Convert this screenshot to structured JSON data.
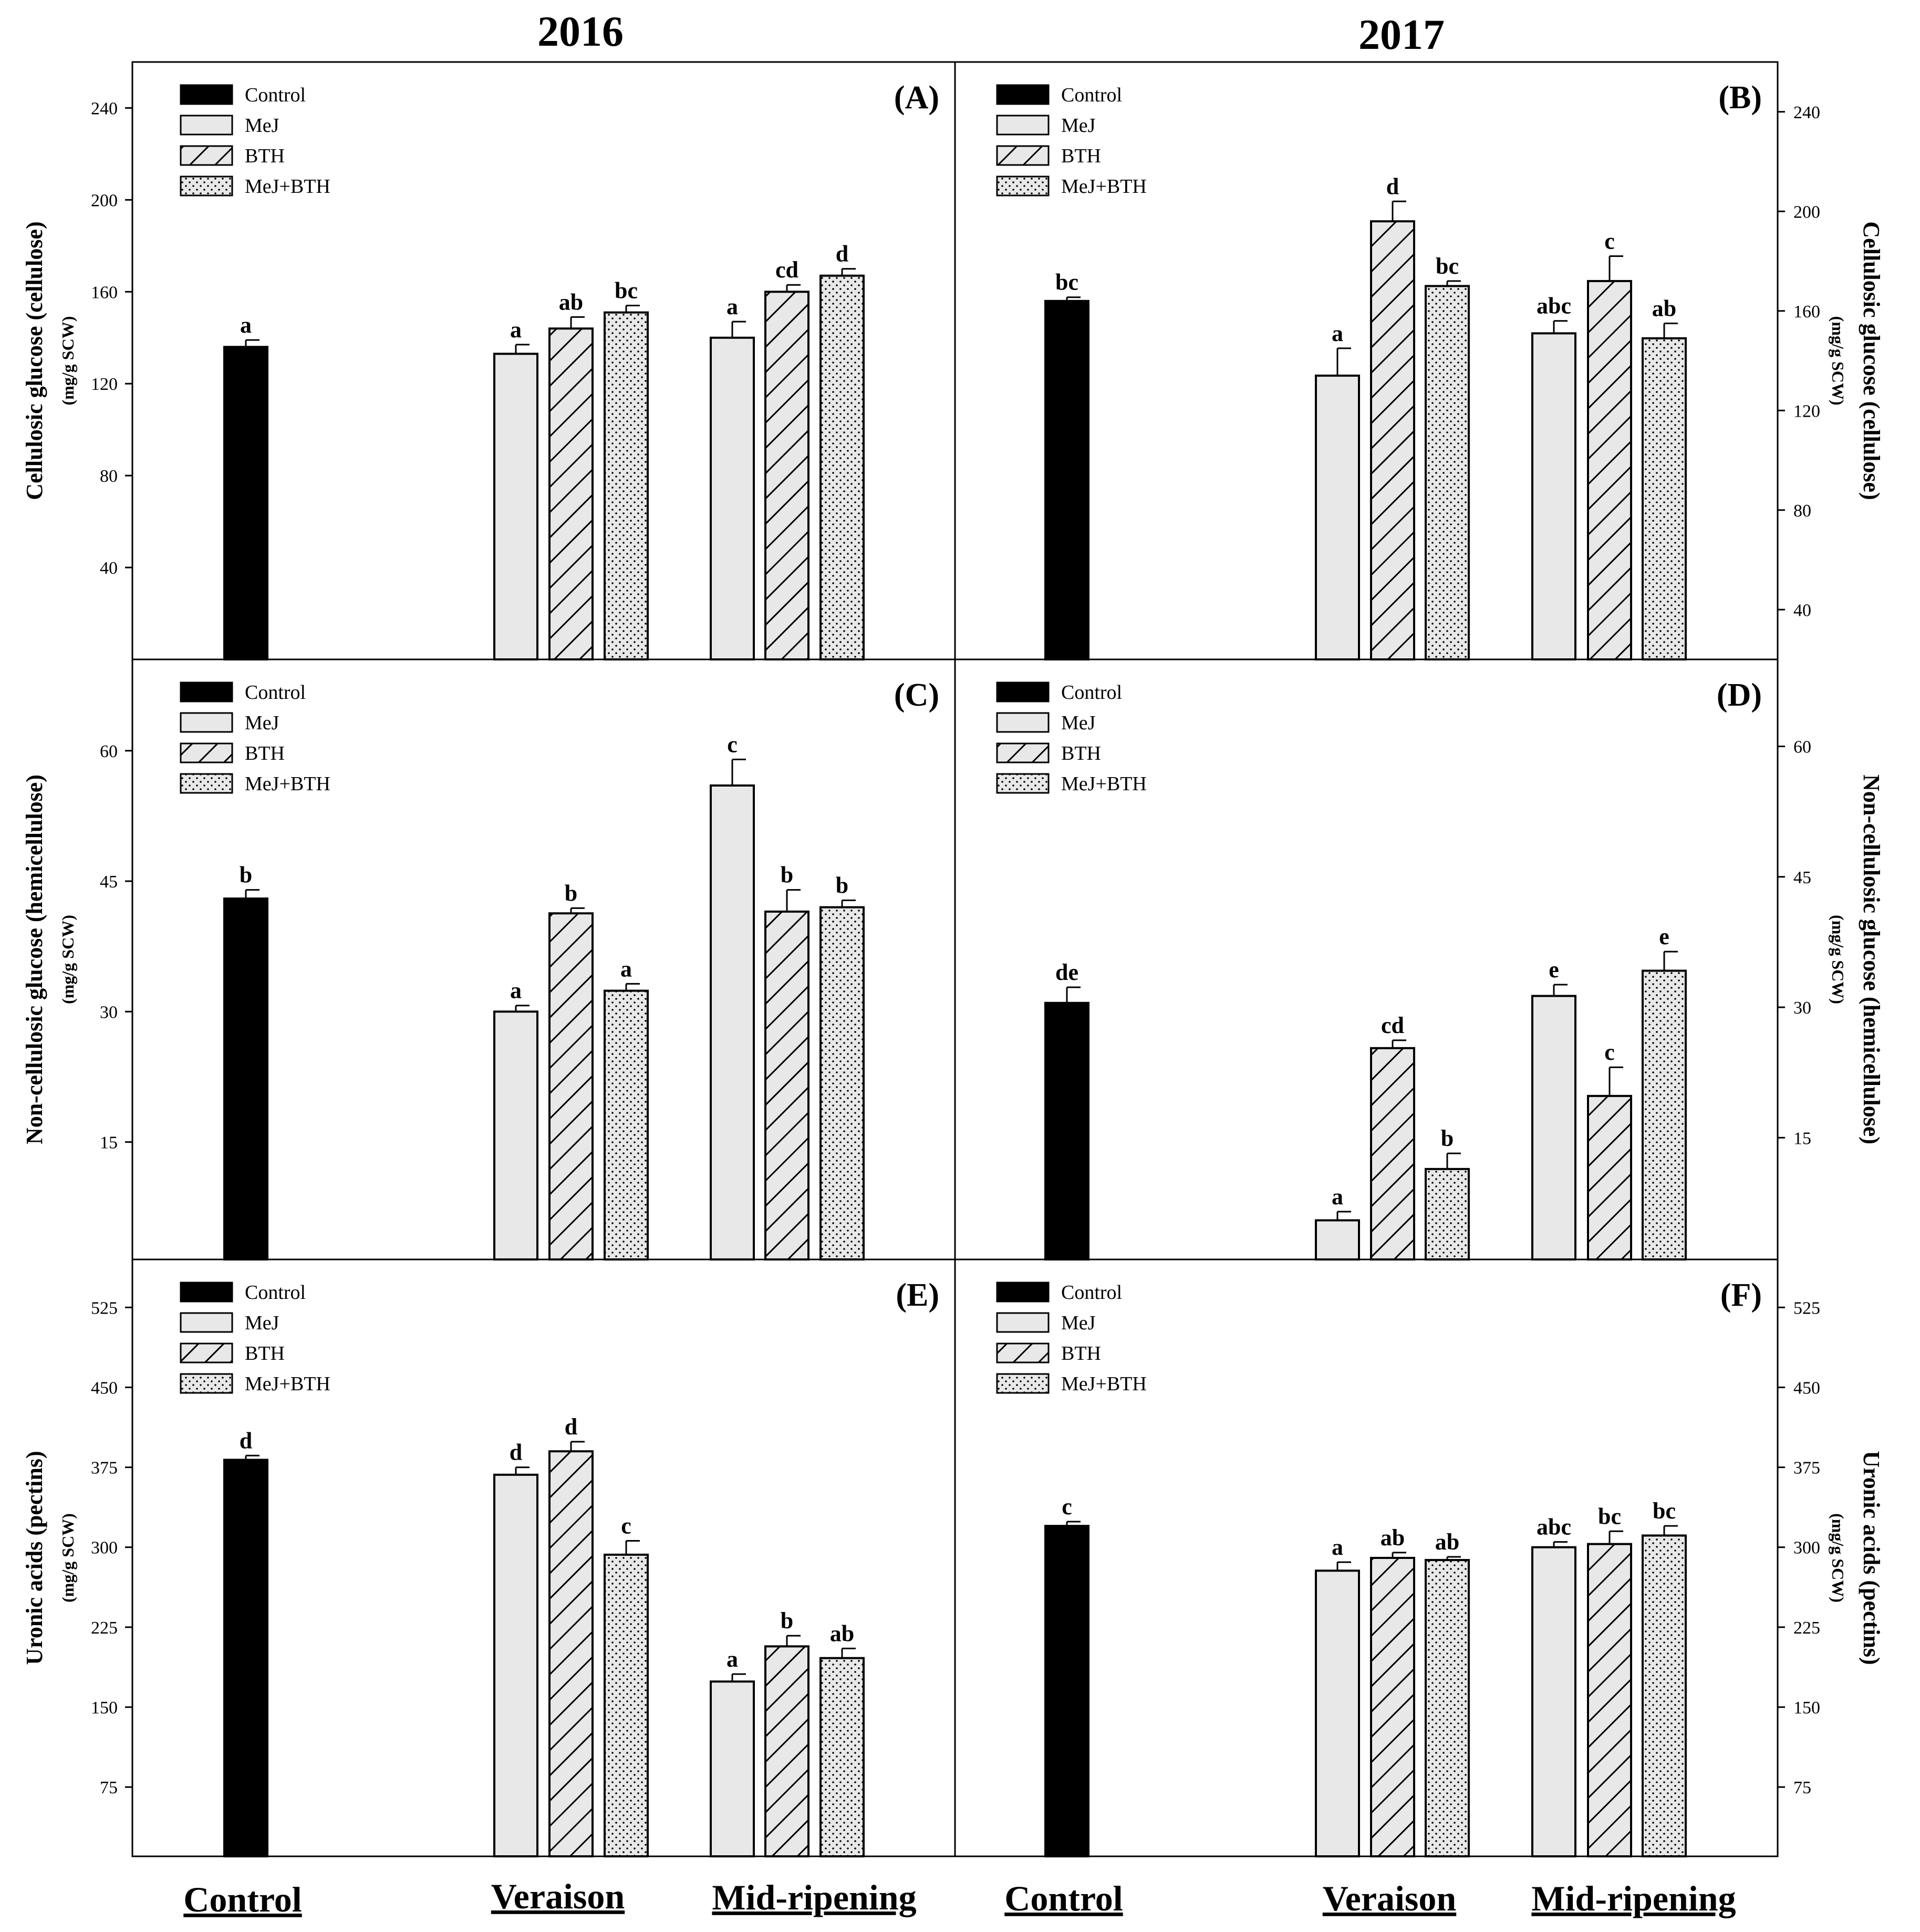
{
  "figure": {
    "year_labels": [
      "2016",
      "2017"
    ],
    "x_groups": [
      "Control",
      "Veraison",
      "Mid-ripening"
    ],
    "legend": [
      "Control",
      "MeJ",
      "BTH",
      "MeJ+BTH"
    ]
  },
  "chart_data": [
    {
      "type": "bar",
      "panel": "(A)",
      "year": "2016",
      "ylabel": "Cellulosic glucose (cellulose)",
      "yunit": "(mg/g SCW)",
      "ylim": [
        0,
        260
      ],
      "yticks": [
        40,
        80,
        120,
        160,
        200,
        240
      ],
      "yaxis": "left",
      "series": [
        {
          "group": "Control",
          "treatment": "Control",
          "value": 136,
          "err": 3,
          "letter": "a"
        },
        {
          "group": "Veraison",
          "treatment": "MeJ",
          "value": 133,
          "err": 4,
          "letter": "a"
        },
        {
          "group": "Veraison",
          "treatment": "BTH",
          "value": 144,
          "err": 5,
          "letter": "ab"
        },
        {
          "group": "Veraison",
          "treatment": "MeJ+BTH",
          "value": 151,
          "err": 3,
          "letter": "bc"
        },
        {
          "group": "Mid-ripening",
          "treatment": "MeJ",
          "value": 140,
          "err": 7,
          "letter": "a"
        },
        {
          "group": "Mid-ripening",
          "treatment": "BTH",
          "value": 160,
          "err": 3,
          "letter": "cd"
        },
        {
          "group": "Mid-ripening",
          "treatment": "MeJ+BTH",
          "value": 167,
          "err": 3,
          "letter": "d"
        }
      ]
    },
    {
      "type": "bar",
      "panel": "(B)",
      "year": "2017",
      "ylabel": "Cellulosic glucose (cellulose)",
      "yunit": "(mg/g SCW)",
      "ylim": [
        20,
        260
      ],
      "yticks": [
        40,
        80,
        120,
        160,
        200,
        240
      ],
      "yaxis": "right",
      "series": [
        {
          "group": "Control",
          "treatment": "Control",
          "value": 164,
          "err": 1.5,
          "letter": "bc"
        },
        {
          "group": "Veraison",
          "treatment": "MeJ",
          "value": 134,
          "err": 11,
          "letter": "a"
        },
        {
          "group": "Veraison",
          "treatment": "BTH",
          "value": 196,
          "err": 8,
          "letter": "d"
        },
        {
          "group": "Veraison",
          "treatment": "MeJ+BTH",
          "value": 170,
          "err": 2,
          "letter": "bc"
        },
        {
          "group": "Mid-ripening",
          "treatment": "MeJ",
          "value": 151,
          "err": 5,
          "letter": "abc"
        },
        {
          "group": "Mid-ripening",
          "treatment": "BTH",
          "value": 172,
          "err": 10,
          "letter": "c"
        },
        {
          "group": "Mid-ripening",
          "treatment": "MeJ+BTH",
          "value": 149,
          "err": 6,
          "letter": "ab"
        }
      ]
    },
    {
      "type": "bar",
      "panel": "(C)",
      "year": "2016",
      "ylabel": "Non-cellulosic glucose (hemicellulose)",
      "yunit": "(mg/g SCW)",
      "ylim": [
        1.5,
        70.5
      ],
      "yticks": [
        15,
        30,
        45,
        60
      ],
      "yaxis": "left",
      "series": [
        {
          "group": "Control",
          "treatment": "Control",
          "value": 43,
          "err": 1,
          "letter": "b"
        },
        {
          "group": "Veraison",
          "treatment": "MeJ",
          "value": 30,
          "err": 0.7,
          "letter": "a"
        },
        {
          "group": "Veraison",
          "treatment": "BTH",
          "value": 41.3,
          "err": 0.6,
          "letter": "b"
        },
        {
          "group": "Veraison",
          "treatment": "MeJ+BTH",
          "value": 32.4,
          "err": 0.8,
          "letter": "a"
        },
        {
          "group": "Mid-ripening",
          "treatment": "MeJ",
          "value": 56,
          "err": 3,
          "letter": "c"
        },
        {
          "group": "Mid-ripening",
          "treatment": "BTH",
          "value": 41.5,
          "err": 2.5,
          "letter": "b"
        },
        {
          "group": "Mid-ripening",
          "treatment": "MeJ+BTH",
          "value": 42,
          "err": 0.8,
          "letter": "b"
        }
      ]
    },
    {
      "type": "bar",
      "panel": "(D)",
      "year": "2017",
      "ylabel": "Non-cellulosic glucose (hemicellulose)",
      "yunit": "(mg/g SCW)",
      "ylim": [
        1,
        70
      ],
      "yticks": [
        15,
        30,
        45,
        60
      ],
      "yaxis": "right",
      "series": [
        {
          "group": "Control",
          "treatment": "Control",
          "value": 30.5,
          "err": 1.8,
          "letter": "de"
        },
        {
          "group": "Veraison",
          "treatment": "MeJ",
          "value": 5.5,
          "err": 1,
          "letter": "a"
        },
        {
          "group": "Veraison",
          "treatment": "BTH",
          "value": 25.3,
          "err": 0.9,
          "letter": "cd"
        },
        {
          "group": "Veraison",
          "treatment": "MeJ+BTH",
          "value": 11.4,
          "err": 1.8,
          "letter": "b"
        },
        {
          "group": "Mid-ripening",
          "treatment": "MeJ",
          "value": 31.3,
          "err": 1.3,
          "letter": "e"
        },
        {
          "group": "Mid-ripening",
          "treatment": "BTH",
          "value": 19.8,
          "err": 3.3,
          "letter": "c"
        },
        {
          "group": "Mid-ripening",
          "treatment": "MeJ+BTH",
          "value": 34.2,
          "err": 2.2,
          "letter": "e"
        }
      ]
    },
    {
      "type": "bar",
      "panel": "(E)",
      "year": "2016",
      "ylabel": "Uronic acids (pectins)",
      "yunit": "(mg/g SCW)",
      "ylim": [
        10,
        570
      ],
      "yticks": [
        75,
        150,
        225,
        300,
        375,
        450,
        525
      ],
      "yaxis": "left",
      "series": [
        {
          "group": "Control",
          "treatment": "Control",
          "value": 382,
          "err": 4,
          "letter": "d"
        },
        {
          "group": "Veraison",
          "treatment": "MeJ",
          "value": 368,
          "err": 7,
          "letter": "d"
        },
        {
          "group": "Veraison",
          "treatment": "BTH",
          "value": 390,
          "err": 9,
          "letter": "d"
        },
        {
          "group": "Veraison",
          "treatment": "MeJ+BTH",
          "value": 293,
          "err": 13,
          "letter": "c"
        },
        {
          "group": "Mid-ripening",
          "treatment": "MeJ",
          "value": 174,
          "err": 7,
          "letter": "a"
        },
        {
          "group": "Mid-ripening",
          "treatment": "BTH",
          "value": 207,
          "err": 10,
          "letter": "b"
        },
        {
          "group": "Mid-ripening",
          "treatment": "MeJ+BTH",
          "value": 196,
          "err": 9,
          "letter": "ab"
        }
      ]
    },
    {
      "type": "bar",
      "panel": "(F)",
      "year": "2017",
      "ylabel": "Uronic acids (pectins)",
      "yunit": "(mg/g SCW)",
      "ylim": [
        10,
        570
      ],
      "yticks": [
        75,
        150,
        225,
        300,
        375,
        450,
        525
      ],
      "yaxis": "right",
      "series": [
        {
          "group": "Control",
          "treatment": "Control",
          "value": 320,
          "err": 4,
          "letter": "c"
        },
        {
          "group": "Veraison",
          "treatment": "MeJ",
          "value": 278,
          "err": 8,
          "letter": "a"
        },
        {
          "group": "Veraison",
          "treatment": "BTH",
          "value": 290,
          "err": 5,
          "letter": "ab"
        },
        {
          "group": "Veraison",
          "treatment": "MeJ+BTH",
          "value": 288,
          "err": 3,
          "letter": "ab"
        },
        {
          "group": "Mid-ripening",
          "treatment": "MeJ",
          "value": 300,
          "err": 5,
          "letter": "abc"
        },
        {
          "group": "Mid-ripening",
          "treatment": "BTH",
          "value": 303,
          "err": 12,
          "letter": "bc"
        },
        {
          "group": "Mid-ripening",
          "treatment": "MeJ+BTH",
          "value": 311,
          "err": 9,
          "letter": "bc"
        }
      ]
    }
  ]
}
